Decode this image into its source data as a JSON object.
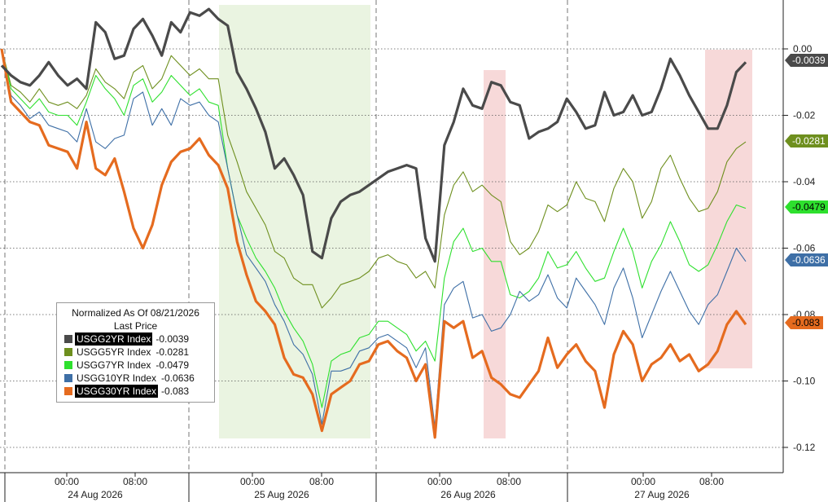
{
  "chart_data": {
    "type": "line",
    "title": "",
    "legend": {
      "title": "Normalized As Of 08/21/2026",
      "subtitle": "Last Price",
      "placement": "bottom-left"
    },
    "y_axis": {
      "position": "right",
      "ylim": [
        -0.125,
        0.015
      ],
      "ticks": [
        0.0,
        -0.02,
        -0.04,
        -0.06,
        -0.08,
        -0.1,
        -0.12
      ],
      "tick_labels": [
        "0.00",
        "-0.02",
        "-0.04",
        "-0.06",
        "-0.08",
        "-0.10",
        "-0.12"
      ],
      "gridlines": "dotted"
    },
    "x_axis": {
      "time_labels": [
        "00:00",
        "08:00",
        "00:00",
        "08:00",
        "00:00",
        "08:00",
        "00:00",
        "08:00"
      ],
      "date_labels": [
        "24 Aug 2026",
        "25 Aug 2026",
        "26 Aug 2026",
        "27 Aug 2026"
      ]
    },
    "shaded_regions": [
      {
        "name": "highlight-green",
        "color": "#e6f2dc"
      },
      {
        "name": "highlight-red-1",
        "color": "#f6d2d2"
      },
      {
        "name": "highlight-red-2",
        "color": "#f6d2d2"
      }
    ],
    "series": [
      {
        "name": "USGG2YR Index",
        "last": "-0.0039",
        "color": "#4a4a4a",
        "tag_text": "#ffffff",
        "y": [
          -0.005,
          -0.008,
          -0.01,
          -0.011,
          -0.008,
          -0.004,
          -0.008,
          -0.011,
          -0.009,
          -0.012,
          0.008,
          0.005,
          -0.003,
          -0.002,
          0.006,
          0.009,
          0.004,
          -0.002,
          0.008,
          0.005,
          0.011,
          0.01,
          0.012,
          0.009,
          0.007,
          -0.007,
          -0.012,
          -0.018,
          -0.025,
          -0.036,
          -0.033,
          -0.038,
          -0.044,
          -0.061,
          -0.063,
          -0.051,
          -0.046,
          -0.044,
          -0.043,
          -0.041,
          -0.039,
          -0.037,
          -0.036,
          -0.035,
          -0.036,
          -0.057,
          -0.064,
          -0.029,
          -0.022,
          -0.012,
          -0.017,
          -0.018,
          -0.01,
          -0.011,
          -0.016,
          -0.017,
          -0.027,
          -0.025,
          -0.024,
          -0.022,
          -0.015,
          -0.019,
          -0.024,
          -0.023,
          -0.013,
          -0.02,
          -0.019,
          -0.014,
          -0.02,
          -0.019,
          -0.012,
          -0.003,
          -0.008,
          -0.014,
          -0.019,
          -0.024,
          -0.024,
          -0.017,
          -0.007,
          -0.004
        ]
      },
      {
        "name": "USGG5YR Index",
        "last": "-0.0281",
        "color": "#6e8f1e",
        "tag_text": "#ffffff",
        "y": [
          0.0,
          -0.011,
          -0.013,
          -0.016,
          -0.012,
          -0.016,
          -0.017,
          -0.016,
          -0.018,
          -0.014,
          -0.006,
          -0.01,
          -0.012,
          -0.015,
          -0.007,
          -0.005,
          -0.012,
          -0.009,
          -0.002,
          -0.005,
          -0.008,
          -0.006,
          -0.009,
          -0.009,
          -0.026,
          -0.034,
          -0.043,
          -0.048,
          -0.053,
          -0.061,
          -0.063,
          -0.069,
          -0.071,
          -0.071,
          -0.078,
          -0.075,
          -0.071,
          -0.07,
          -0.069,
          -0.067,
          -0.063,
          -0.062,
          -0.064,
          -0.065,
          -0.069,
          -0.067,
          -0.072,
          -0.05,
          -0.041,
          -0.037,
          -0.043,
          -0.041,
          -0.044,
          -0.046,
          -0.058,
          -0.062,
          -0.06,
          -0.055,
          -0.047,
          -0.049,
          -0.047,
          -0.04,
          -0.045,
          -0.046,
          -0.052,
          -0.042,
          -0.036,
          -0.04,
          -0.051,
          -0.046,
          -0.036,
          -0.032,
          -0.039,
          -0.045,
          -0.049,
          -0.048,
          -0.043,
          -0.034,
          -0.03,
          -0.028
        ]
      },
      {
        "name": "USGG7YR Index",
        "last": "-0.0479",
        "color": "#2ee02e",
        "tag_text": "#000000",
        "y": [
          0.0,
          -0.012,
          -0.015,
          -0.018,
          -0.015,
          -0.019,
          -0.02,
          -0.02,
          -0.023,
          -0.016,
          -0.008,
          -0.012,
          -0.015,
          -0.02,
          -0.011,
          -0.009,
          -0.016,
          -0.013,
          -0.008,
          -0.011,
          -0.014,
          -0.012,
          -0.016,
          -0.017,
          -0.036,
          -0.05,
          -0.057,
          -0.063,
          -0.067,
          -0.072,
          -0.079,
          -0.084,
          -0.088,
          -0.095,
          -0.108,
          -0.094,
          -0.092,
          -0.091,
          -0.087,
          -0.086,
          -0.082,
          -0.082,
          -0.084,
          -0.086,
          -0.091,
          -0.088,
          -0.094,
          -0.069,
          -0.058,
          -0.054,
          -0.061,
          -0.06,
          -0.064,
          -0.064,
          -0.074,
          -0.075,
          -0.073,
          -0.069,
          -0.061,
          -0.066,
          -0.065,
          -0.061,
          -0.066,
          -0.07,
          -0.069,
          -0.061,
          -0.054,
          -0.061,
          -0.072,
          -0.064,
          -0.059,
          -0.052,
          -0.058,
          -0.065,
          -0.067,
          -0.065,
          -0.059,
          -0.052,
          -0.047,
          -0.048
        ]
      },
      {
        "name": "USGG10YR Index",
        "last": "-0.0636",
        "color": "#3e6fa6",
        "tag_text": "#ffffff",
        "y": [
          0.0,
          -0.014,
          -0.017,
          -0.021,
          -0.019,
          -0.023,
          -0.024,
          -0.025,
          -0.028,
          -0.018,
          -0.028,
          -0.03,
          -0.027,
          -0.026,
          -0.015,
          -0.013,
          -0.023,
          -0.018,
          -0.023,
          -0.015,
          -0.017,
          -0.016,
          -0.02,
          -0.022,
          -0.036,
          -0.05,
          -0.062,
          -0.066,
          -0.07,
          -0.077,
          -0.082,
          -0.089,
          -0.092,
          -0.098,
          -0.113,
          -0.097,
          -0.097,
          -0.096,
          -0.091,
          -0.09,
          -0.087,
          -0.086,
          -0.088,
          -0.09,
          -0.096,
          -0.09,
          -0.114,
          -0.077,
          -0.072,
          -0.07,
          -0.081,
          -0.08,
          -0.085,
          -0.084,
          -0.08,
          -0.073,
          -0.076,
          -0.074,
          -0.068,
          -0.075,
          -0.078,
          -0.069,
          -0.073,
          -0.077,
          -0.083,
          -0.072,
          -0.066,
          -0.075,
          -0.087,
          -0.08,
          -0.073,
          -0.067,
          -0.073,
          -0.079,
          -0.083,
          -0.077,
          -0.074,
          -0.067,
          -0.06,
          -0.064
        ]
      },
      {
        "name": "USGG30YR Index",
        "last": "-0.083",
        "color": "#e56b1f",
        "tag_text": "#000000",
        "y": [
          0.0,
          -0.016,
          -0.019,
          -0.022,
          -0.023,
          -0.029,
          -0.03,
          -0.031,
          -0.036,
          -0.022,
          -0.036,
          -0.038,
          -0.033,
          -0.043,
          -0.054,
          -0.06,
          -0.053,
          -0.041,
          -0.034,
          -0.031,
          -0.03,
          -0.027,
          -0.032,
          -0.035,
          -0.042,
          -0.058,
          -0.068,
          -0.076,
          -0.079,
          -0.083,
          -0.093,
          -0.098,
          -0.099,
          -0.104,
          -0.115,
          -0.104,
          -0.102,
          -0.1,
          -0.095,
          -0.094,
          -0.089,
          -0.088,
          -0.091,
          -0.093,
          -0.1,
          -0.095,
          -0.117,
          -0.082,
          -0.084,
          -0.082,
          -0.093,
          -0.091,
          -0.099,
          -0.101,
          -0.104,
          -0.105,
          -0.101,
          -0.097,
          -0.087,
          -0.096,
          -0.092,
          -0.089,
          -0.094,
          -0.097,
          -0.108,
          -0.092,
          -0.085,
          -0.089,
          -0.1,
          -0.095,
          -0.093,
          -0.089,
          -0.094,
          -0.092,
          -0.097,
          -0.095,
          -0.091,
          -0.083,
          -0.079,
          -0.083
        ]
      }
    ]
  }
}
